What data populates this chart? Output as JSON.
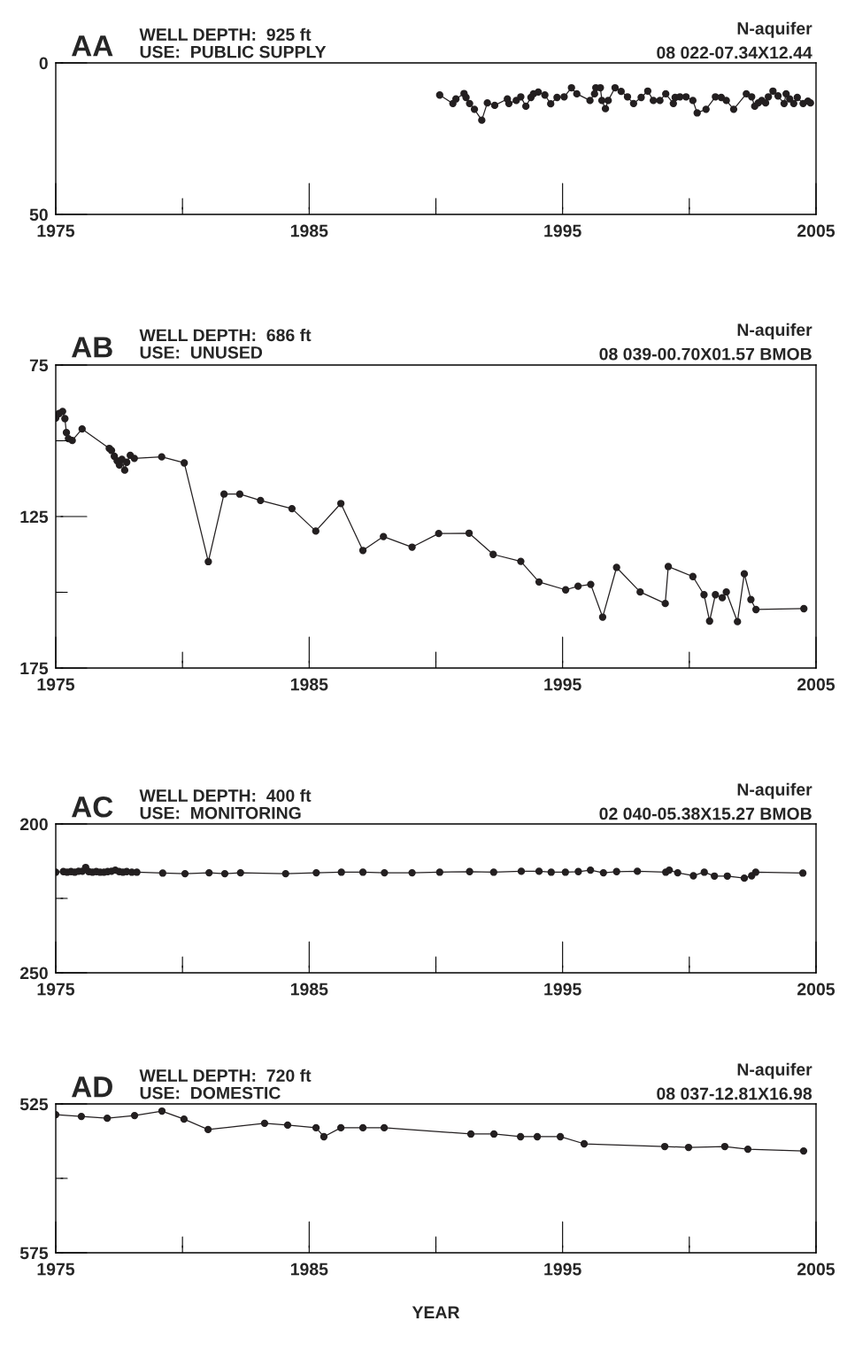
{
  "chart_data": [
    {
      "type": "line",
      "title": "AA",
      "subtitle": "WELL DEPTH:  925 ft\nUSE:  PUBLIC SUPPLY",
      "annotations": [
        "N-aquifer",
        "08 022-07.34X12.44"
      ],
      "marker": "circle",
      "line_style": "solid",
      "grid": false,
      "xlim": [
        1975,
        2005
      ],
      "xticks": [
        1975,
        {
          "value": 1980,
          "label": null
        },
        1985,
        {
          "value": 1990,
          "label": null
        },
        1995,
        {
          "value": 2000,
          "label": null
        },
        2005
      ],
      "ylim": [
        50,
        0
      ],
      "yticks": [
        0,
        50
      ],
      "series": [
        {
          "color": "#231f20",
          "x": [
            1990.15,
            1990.67,
            1990.79,
            1991.11,
            1991.19,
            1991.33,
            1991.52,
            1991.81,
            1992.03,
            1992.32,
            1992.82,
            1992.88,
            1993.17,
            1993.35,
            1993.55,
            1993.75,
            1993.85,
            1994.04,
            1994.3,
            1994.53,
            1994.78,
            1995.06,
            1995.35,
            1995.56,
            1996.08,
            1996.26,
            1996.31,
            1996.49,
            1996.55,
            1996.69,
            1996.8,
            1997.07,
            1997.31,
            1997.56,
            1997.8,
            1998.1,
            1998.36,
            1998.58,
            1998.84,
            1999.07,
            1999.37,
            1999.44,
            1999.63,
            1999.87,
            2000.14,
            2000.31,
            2000.66,
            2001.03,
            2001.26,
            2001.46,
            2001.75,
            2002.25,
            2002.46,
            2002.58,
            2002.72,
            2002.86,
            2003.01,
            2003.12,
            2003.3,
            2003.5,
            2003.74,
            2003.82,
            2003.96,
            2004.12,
            2004.26,
            2004.49,
            2004.68,
            2004.78
          ],
          "values": [
            10.6,
            13.4,
            11.9,
            10.1,
            11.4,
            13.4,
            15.3,
            18.9,
            13.2,
            14.0,
            11.9,
            13.4,
            12.4,
            11.2,
            14.3,
            11.4,
            10.2,
            9.6,
            10.6,
            13.5,
            11.4,
            11.2,
            8.2,
            10.2,
            12.4,
            10.2,
            8.2,
            8.2,
            12.4,
            15.1,
            12.4,
            8.2,
            9.4,
            11.2,
            13.4,
            11.4,
            9.3,
            12.4,
            12.4,
            10.2,
            13.4,
            11.4,
            11.2,
            11.2,
            12.4,
            16.5,
            15.3,
            11.2,
            11.4,
            12.4,
            15.3,
            10.2,
            11.2,
            14.3,
            13.2,
            12.4,
            13.2,
            11.2,
            9.3,
            10.9,
            13.4,
            10.2,
            11.9,
            13.4,
            11.4,
            13.4,
            12.6,
            13.2
          ]
        }
      ]
    },
    {
      "type": "line",
      "title": "AB",
      "subtitle": "WELL DEPTH:  686 ft\nUSE:  UNUSED",
      "annotations": [
        "N-aquifer",
        "08 039-00.70X01.57 BMOB"
      ],
      "marker": "circle",
      "line_style": "solid",
      "grid": false,
      "xlim": [
        1975,
        2005
      ],
      "xticks": [
        1975,
        {
          "value": 1980,
          "label": null
        },
        1985,
        {
          "value": 1990,
          "label": null
        },
        1995,
        {
          "value": 2000,
          "label": null
        },
        2005
      ],
      "ylim": [
        175,
        75
      ],
      "yticks": [
        75,
        {
          "value": 100,
          "label": null
        },
        125,
        {
          "value": 150,
          "label": null
        },
        175
      ],
      "series": [
        {
          "color": "#231f20",
          "x": [
            1975.0,
            1975.13,
            1975.27,
            1975.36,
            1975.42,
            1975.5,
            1975.65,
            1976.04,
            1977.11,
            1977.2,
            1977.31,
            1977.42,
            1977.51,
            1977.61,
            1977.72,
            1977.8,
            1977.94,
            1978.1,
            1979.18,
            1980.07,
            1981.02,
            1981.64,
            1982.26,
            1983.08,
            1984.32,
            1985.26,
            1986.25,
            1987.12,
            1987.93,
            1989.06,
            1990.11,
            1991.31,
            1992.26,
            1993.35,
            1994.07,
            1995.12,
            1995.61,
            1996.11,
            1996.58,
            1997.13,
            1998.06,
            1999.05,
            1999.17,
            2000.14,
            2000.58,
            2000.8,
            2001.03,
            2001.3,
            2001.46,
            2001.9,
            2002.17,
            2002.43,
            2002.63,
            2004.52
          ],
          "values": [
            92.5,
            91.0,
            90.3,
            92.7,
            97.3,
            99.3,
            99.9,
            96.1,
            102.5,
            103.2,
            105.1,
            106.6,
            108.0,
            106.1,
            109.7,
            107.1,
            104.8,
            105.8,
            105.3,
            107.3,
            139.9,
            117.6,
            117.6,
            119.7,
            122.4,
            129.8,
            120.7,
            136.2,
            131.6,
            135.1,
            130.6,
            130.5,
            137.5,
            139.8,
            146.6,
            149.2,
            148.0,
            147.4,
            158.2,
            141.8,
            149.9,
            153.7,
            141.5,
            144.8,
            150.8,
            159.5,
            150.8,
            151.8,
            149.9,
            159.7,
            143.9,
            152.4,
            155.7,
            155.4
          ]
        }
      ]
    },
    {
      "type": "line",
      "title": "AC",
      "subtitle": "WELL DEPTH:  400 ft\nUSE:  MONITORING",
      "annotations": [
        "N-aquifer",
        "02 040-05.38X15.27 BMOB"
      ],
      "marker": "circle",
      "line_style": "solid",
      "grid": false,
      "xlim": [
        1975,
        2005
      ],
      "xticks": [
        1975,
        {
          "value": 1980,
          "label": null
        },
        1985,
        {
          "value": 1990,
          "label": null
        },
        1995,
        {
          "value": 2000,
          "label": null
        },
        2005
      ],
      "ylim": [
        250,
        200
      ],
      "yticks": [
        200,
        {
          "value": 225,
          "label": null
        },
        250
      ],
      "series": [
        {
          "color": "#231f20",
          "x": [
            1975.0,
            1975.3,
            1975.45,
            1975.6,
            1975.75,
            1975.9,
            1976.05,
            1976.18,
            1976.3,
            1976.45,
            1976.6,
            1976.75,
            1976.9,
            1977.05,
            1977.2,
            1977.35,
            1977.5,
            1977.65,
            1977.8,
            1978.0,
            1978.2,
            1979.22,
            1980.1,
            1981.05,
            1981.67,
            1982.29,
            1984.07,
            1985.28,
            1986.27,
            1987.12,
            1987.97,
            1989.06,
            1990.15,
            1991.33,
            1992.28,
            1993.37,
            1994.07,
            1994.55,
            1995.11,
            1995.62,
            1996.1,
            1996.61,
            1997.13,
            1997.95,
            1999.07,
            1999.21,
            1999.54,
            2000.16,
            2000.59,
            2000.99,
            2001.5,
            2002.17,
            2002.46,
            2002.62,
            2004.48
          ],
          "values": [
            216.2,
            216.0,
            216.2,
            216.0,
            216.2,
            215.9,
            215.9,
            214.6,
            216.0,
            216.2,
            216.0,
            216.2,
            216.2,
            216.0,
            215.9,
            215.5,
            216.0,
            216.2,
            216.0,
            216.2,
            216.2,
            216.5,
            216.7,
            216.4,
            216.7,
            216.4,
            216.7,
            216.4,
            216.2,
            216.2,
            216.4,
            216.4,
            216.2,
            216.0,
            216.2,
            215.9,
            215.9,
            216.2,
            216.2,
            216.0,
            215.5,
            216.4,
            216.0,
            215.9,
            216.2,
            215.5,
            216.4,
            217.4,
            216.2,
            217.5,
            217.5,
            218.2,
            217.4,
            216.2,
            216.5
          ]
        }
      ]
    },
    {
      "type": "line",
      "title": "AD",
      "subtitle": "WELL DEPTH:  720 ft\nUSE:  DOMESTIC",
      "annotations": [
        "N-aquifer",
        "08 037-12.81X16.98"
      ],
      "xlabel": "YEAR",
      "marker": "circle",
      "line_style": "solid",
      "grid": false,
      "xlim": [
        1975,
        2005
      ],
      "xticks": [
        1975,
        {
          "value": 1980,
          "label": null
        },
        1985,
        {
          "value": 1990,
          "label": null
        },
        1995,
        {
          "value": 2000,
          "label": null
        },
        2005
      ],
      "ylim": [
        575,
        525
      ],
      "yticks": [
        525,
        {
          "value": 550,
          "label": null
        },
        575
      ],
      "series": [
        {
          "color": "#231f20",
          "x": [
            1975.0,
            1976.01,
            1977.03,
            1978.11,
            1979.19,
            1980.06,
            1981.01,
            1983.24,
            1984.15,
            1985.27,
            1985.58,
            1986.25,
            1987.12,
            1987.96,
            1991.38,
            1992.29,
            1993.34,
            1994.0,
            1994.91,
            1995.85,
            1999.03,
            1999.97,
            2001.4,
            2002.31,
            2004.51
          ],
          "values": [
            528.6,
            529.2,
            529.8,
            528.9,
            527.4,
            530.1,
            533.6,
            531.5,
            532.1,
            533.0,
            536.0,
            533.0,
            533.0,
            533.0,
            535.1,
            535.1,
            536.0,
            536.0,
            536.0,
            538.4,
            539.3,
            539.6,
            539.3,
            540.2,
            540.8
          ]
        }
      ]
    }
  ]
}
